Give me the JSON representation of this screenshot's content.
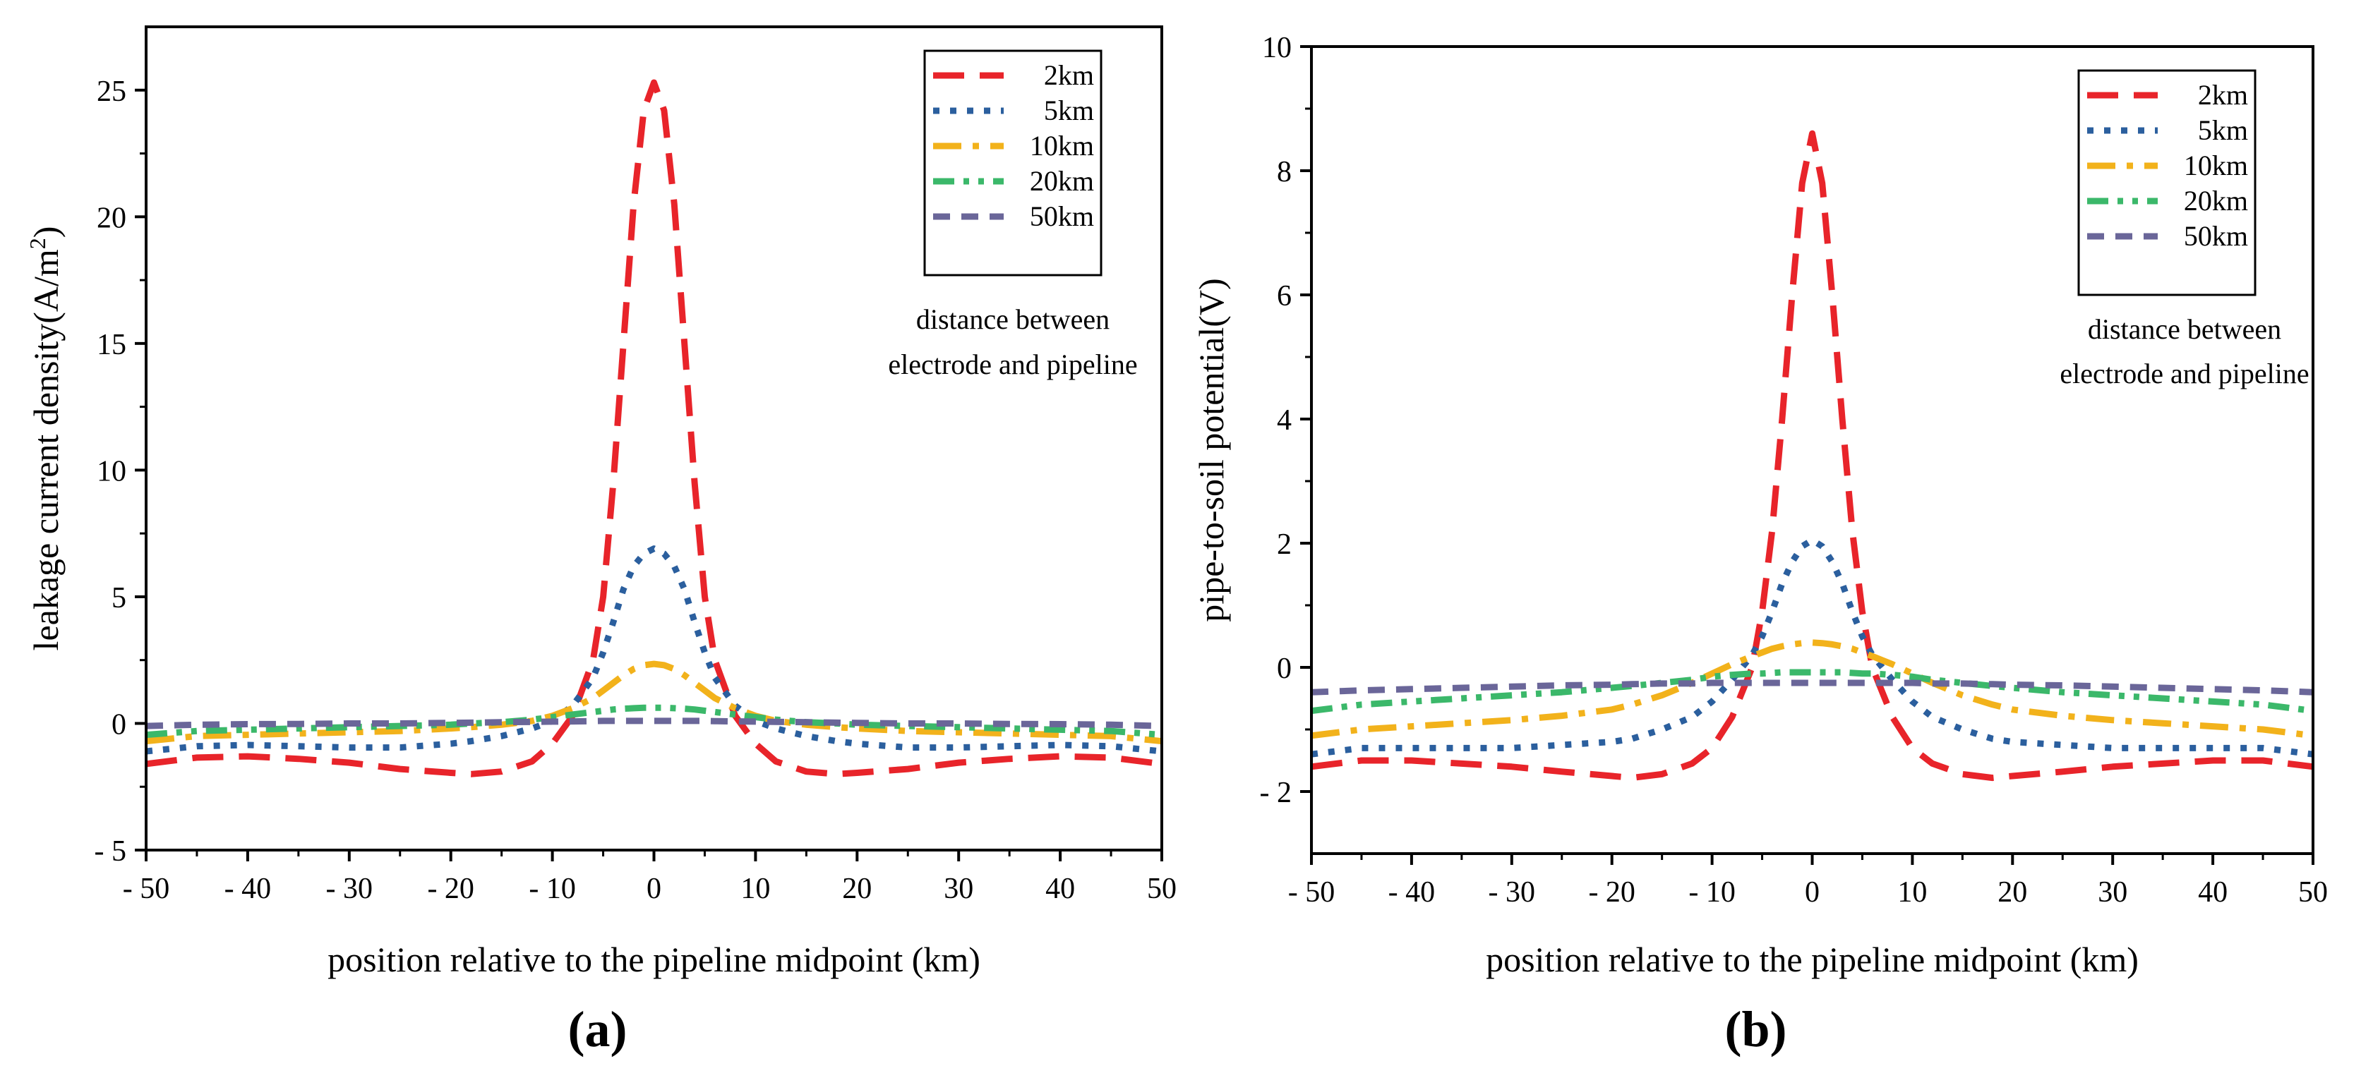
{
  "chart_data": [
    {
      "panel_label": "(a)",
      "type": "line",
      "title": "",
      "xlabel": "position relative to the pipeline midpoint (km)",
      "ylabel": "leakage current density(A/m",
      "ylabel_sup": "2",
      "ylabel_end": ")",
      "xlim": [
        -50,
        50
      ],
      "ylim": [
        -5,
        27.5
      ],
      "xticks": [
        -50,
        -40,
        -30,
        -20,
        -10,
        0,
        10,
        20,
        30,
        40,
        50
      ],
      "xtick_labels": [
        "- 50",
        "- 40",
        "- 30",
        "- 20",
        "- 10",
        "0",
        "10",
        "20",
        "30",
        "40",
        "50"
      ],
      "yticks": [
        -5,
        0,
        5,
        10,
        15,
        20,
        25
      ],
      "ytick_labels": [
        "- 5",
        "0",
        "5",
        "10",
        "15",
        "20",
        "25"
      ],
      "grid": false,
      "legend_position": "top-right",
      "annotation": [
        "distance between",
        "electrode and pipeline"
      ],
      "x": [
        -50,
        -45,
        -40,
        -35,
        -30,
        -25,
        -20,
        -18,
        -15,
        -12,
        -10,
        -8,
        -6,
        -5,
        -4,
        -3,
        -2,
        -1,
        0,
        1,
        2,
        3,
        4,
        5,
        6,
        8,
        10,
        12,
        15,
        18,
        20,
        25,
        30,
        35,
        40,
        45,
        50
      ],
      "series": [
        {
          "name": "2km",
          "color": "#e8242a",
          "dash": "dashed",
          "values": [
            -1.6,
            -1.35,
            -1.3,
            -1.4,
            -1.55,
            -1.8,
            -1.95,
            -2.0,
            -1.9,
            -1.5,
            -0.8,
            0.3,
            2.5,
            5.0,
            9.5,
            15.0,
            20.5,
            24.2,
            25.3,
            24.2,
            20.5,
            15.0,
            9.5,
            5.0,
            2.5,
            0.3,
            -0.8,
            -1.5,
            -1.9,
            -2.0,
            -1.95,
            -1.8,
            -1.55,
            -1.4,
            -1.3,
            -1.35,
            -1.6
          ]
        },
        {
          "name": "5km",
          "color": "#2b5f9e",
          "dash": "dotted",
          "values": [
            -1.1,
            -0.9,
            -0.85,
            -0.9,
            -0.95,
            -0.95,
            -0.8,
            -0.7,
            -0.5,
            -0.2,
            0.1,
            0.7,
            1.8,
            2.8,
            4.0,
            5.3,
            6.2,
            6.7,
            6.9,
            6.7,
            6.2,
            5.3,
            4.0,
            2.8,
            1.8,
            0.7,
            0.1,
            -0.2,
            -0.5,
            -0.7,
            -0.8,
            -0.95,
            -0.95,
            -0.9,
            -0.85,
            -0.9,
            -1.1
          ]
        },
        {
          "name": "10km",
          "color": "#f2b21b",
          "dash": "dashdot",
          "values": [
            -0.7,
            -0.5,
            -0.45,
            -0.4,
            -0.35,
            -0.3,
            -0.2,
            -0.15,
            -0.05,
            0.1,
            0.3,
            0.6,
            1.0,
            1.3,
            1.6,
            1.9,
            2.15,
            2.3,
            2.35,
            2.3,
            2.15,
            1.9,
            1.6,
            1.3,
            1.0,
            0.6,
            0.3,
            0.1,
            -0.05,
            -0.15,
            -0.2,
            -0.3,
            -0.35,
            -0.4,
            -0.45,
            -0.5,
            -0.7
          ]
        },
        {
          "name": "20km",
          "color": "#3bb86a",
          "dash": "dashdotdot",
          "values": [
            -0.45,
            -0.3,
            -0.25,
            -0.2,
            -0.15,
            -0.1,
            -0.05,
            0.0,
            0.05,
            0.15,
            0.25,
            0.35,
            0.45,
            0.5,
            0.55,
            0.58,
            0.6,
            0.62,
            0.62,
            0.62,
            0.6,
            0.58,
            0.55,
            0.5,
            0.45,
            0.35,
            0.25,
            0.15,
            0.05,
            0.0,
            -0.05,
            -0.1,
            -0.15,
            -0.2,
            -0.25,
            -0.3,
            -0.45
          ]
        },
        {
          "name": "50km",
          "color": "#6a6699",
          "dash": "shortdash",
          "values": [
            -0.1,
            -0.05,
            -0.03,
            -0.02,
            0.0,
            0.0,
            0.02,
            0.03,
            0.05,
            0.06,
            0.07,
            0.08,
            0.09,
            0.1,
            0.1,
            0.1,
            0.1,
            0.1,
            0.1,
            0.1,
            0.1,
            0.1,
            0.1,
            0.1,
            0.09,
            0.08,
            0.07,
            0.06,
            0.05,
            0.03,
            0.02,
            0.0,
            0.0,
            -0.02,
            -0.03,
            -0.05,
            -0.1
          ]
        }
      ]
    },
    {
      "panel_label": "(b)",
      "type": "line",
      "title": "",
      "xlabel": "position relative to the pipeline midpoint (km)",
      "ylabel": "pipe-to-soil potential(V)",
      "ylabel_sup": "",
      "ylabel_end": "",
      "xlim": [
        -50,
        50
      ],
      "ylim": [
        -3,
        10
      ],
      "xticks": [
        -50,
        -40,
        -30,
        -20,
        -10,
        0,
        10,
        20,
        30,
        40,
        50
      ],
      "xtick_labels": [
        "- 50",
        "- 40",
        "- 30",
        "- 20",
        "- 10",
        "0",
        "10",
        "20",
        "30",
        "40",
        "50"
      ],
      "yticks": [
        -2,
        0,
        2,
        4,
        6,
        8,
        10
      ],
      "ytick_labels": [
        "- 2",
        "0",
        "2",
        "4",
        "6",
        "8",
        "10"
      ],
      "grid": false,
      "legend_position": "top-right",
      "annotation": [
        "distance between",
        "electrode and pipeline"
      ],
      "x": [
        -50,
        -45,
        -40,
        -35,
        -30,
        -25,
        -20,
        -18,
        -15,
        -12,
        -10,
        -8,
        -6,
        -5,
        -4,
        -3,
        -2,
        -1,
        0,
        1,
        2,
        3,
        4,
        5,
        6,
        8,
        10,
        12,
        15,
        18,
        20,
        25,
        30,
        35,
        40,
        45,
        50
      ],
      "series": [
        {
          "name": "2km",
          "color": "#e8242a",
          "dash": "dashed",
          "values": [
            -1.6,
            -1.5,
            -1.5,
            -1.55,
            -1.6,
            -1.68,
            -1.75,
            -1.78,
            -1.72,
            -1.55,
            -1.3,
            -0.8,
            0.0,
            0.9,
            2.2,
            4.0,
            6.0,
            7.8,
            8.6,
            7.8,
            6.0,
            4.0,
            2.2,
            0.9,
            0.0,
            -0.8,
            -1.3,
            -1.55,
            -1.72,
            -1.78,
            -1.75,
            -1.68,
            -1.6,
            -1.55,
            -1.5,
            -1.5,
            -1.6
          ]
        },
        {
          "name": "5km",
          "color": "#2b5f9e",
          "dash": "dotted",
          "values": [
            -1.4,
            -1.3,
            -1.3,
            -1.3,
            -1.3,
            -1.25,
            -1.2,
            -1.15,
            -1.0,
            -0.8,
            -0.55,
            -0.2,
            0.2,
            0.5,
            0.9,
            1.35,
            1.7,
            1.95,
            2.05,
            1.95,
            1.7,
            1.35,
            0.9,
            0.5,
            0.2,
            -0.2,
            -0.55,
            -0.8,
            -1.0,
            -1.15,
            -1.2,
            -1.25,
            -1.3,
            -1.3,
            -1.3,
            -1.3,
            -1.4
          ]
        },
        {
          "name": "10km",
          "color": "#f2b21b",
          "dash": "dashdot",
          "values": [
            -1.1,
            -1.0,
            -0.95,
            -0.9,
            -0.85,
            -0.78,
            -0.68,
            -0.6,
            -0.45,
            -0.25,
            -0.1,
            0.05,
            0.18,
            0.24,
            0.3,
            0.34,
            0.37,
            0.39,
            0.4,
            0.39,
            0.37,
            0.34,
            0.3,
            0.24,
            0.18,
            0.05,
            -0.1,
            -0.25,
            -0.45,
            -0.6,
            -0.68,
            -0.78,
            -0.85,
            -0.9,
            -0.95,
            -1.0,
            -1.1
          ]
        },
        {
          "name": "20km",
          "color": "#3bb86a",
          "dash": "dashdotdot",
          "values": [
            -0.7,
            -0.6,
            -0.55,
            -0.5,
            -0.45,
            -0.4,
            -0.33,
            -0.3,
            -0.25,
            -0.2,
            -0.15,
            -0.12,
            -0.1,
            -0.1,
            -0.09,
            -0.08,
            -0.08,
            -0.08,
            -0.08,
            -0.08,
            -0.08,
            -0.08,
            -0.09,
            -0.1,
            -0.1,
            -0.12,
            -0.15,
            -0.2,
            -0.25,
            -0.3,
            -0.33,
            -0.4,
            -0.45,
            -0.5,
            -0.55,
            -0.6,
            -0.7
          ]
        },
        {
          "name": "50km",
          "color": "#6a6699",
          "dash": "shortdash",
          "values": [
            -0.4,
            -0.37,
            -0.35,
            -0.33,
            -0.31,
            -0.29,
            -0.28,
            -0.27,
            -0.26,
            -0.26,
            -0.25,
            -0.25,
            -0.25,
            -0.25,
            -0.25,
            -0.25,
            -0.25,
            -0.25,
            -0.25,
            -0.25,
            -0.25,
            -0.25,
            -0.25,
            -0.25,
            -0.25,
            -0.25,
            -0.25,
            -0.26,
            -0.26,
            -0.27,
            -0.28,
            -0.29,
            -0.31,
            -0.33,
            -0.35,
            -0.37,
            -0.4
          ]
        }
      ]
    }
  ]
}
